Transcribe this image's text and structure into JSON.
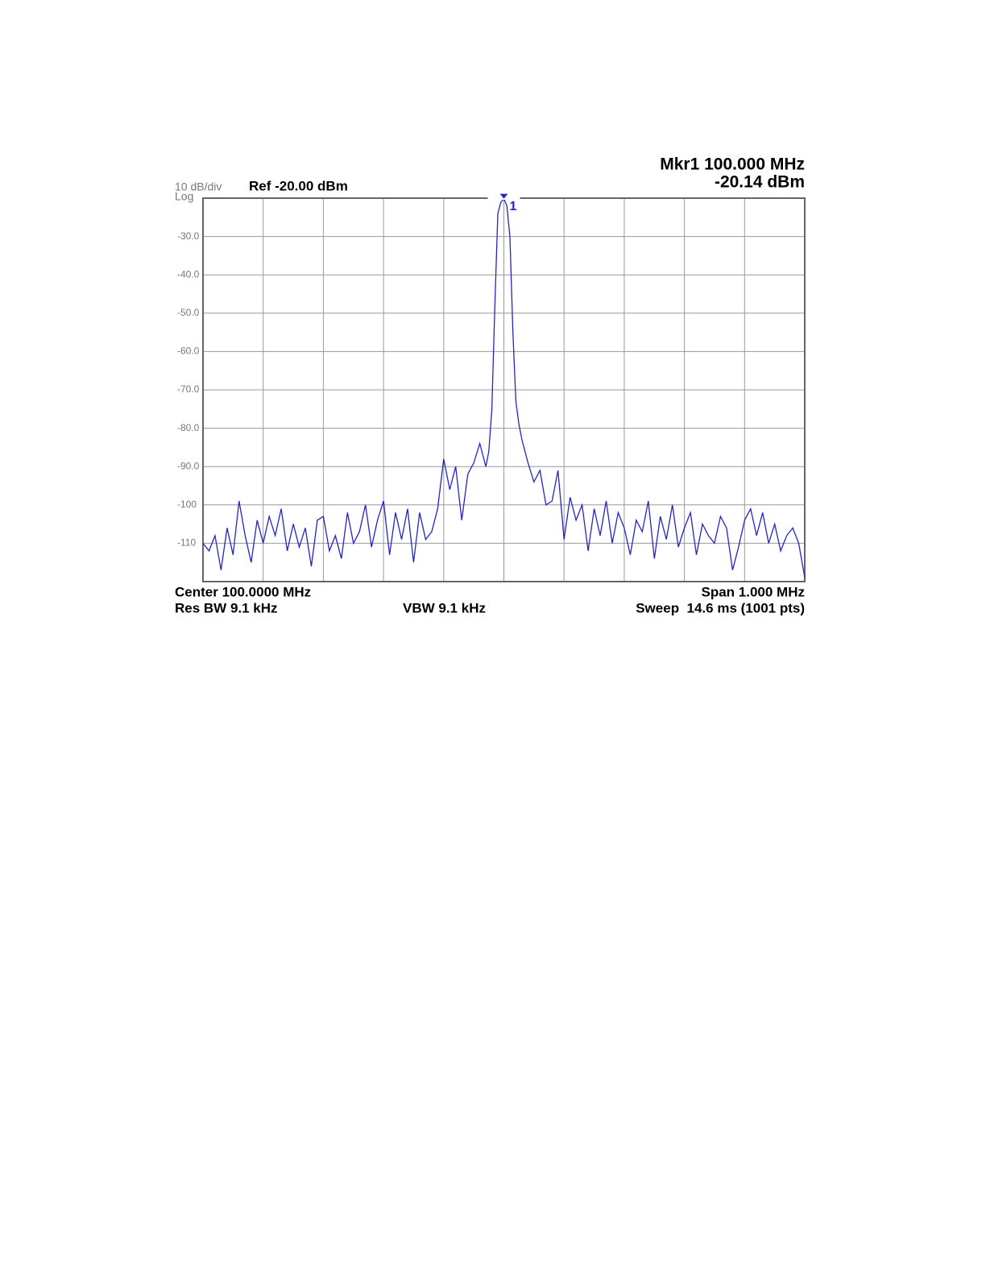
{
  "chart_data": {
    "type": "line",
    "scale_label": "10 dB/div",
    "scale_type": "Log",
    "reference": "Ref -20.00 dBm",
    "marker_readout": [
      "Mkr1 100.000 MHz",
      "-20.14 dBm"
    ],
    "marker": {
      "label": "1",
      "x": 100.0,
      "y": -20.14
    },
    "footer": {
      "center": "Center 100.0000 MHz",
      "span": "Span 1.000 MHz",
      "rbw": "Res BW 9.1 kHz",
      "vbw": "VBW 9.1 kHz",
      "sweep": "Sweep  14.6 ms (1001 pts)"
    },
    "xlim": [
      99.5,
      100.5
    ],
    "xticks": [
      99.6,
      99.7,
      99.8,
      99.9,
      100.0,
      100.1,
      100.2,
      100.3,
      100.4
    ],
    "ylim": [
      -120,
      -20
    ],
    "yticks": [
      {
        "value": -30,
        "label": "-30.0"
      },
      {
        "value": -40,
        "label": "-40.0"
      },
      {
        "value": -50,
        "label": "-50.0"
      },
      {
        "value": -60,
        "label": "-60.0"
      },
      {
        "value": -70,
        "label": "-70.0"
      },
      {
        "value": -80,
        "label": "-80.0"
      },
      {
        "value": -90,
        "label": "-90.0"
      },
      -100,
      -110
    ],
    "grid": true,
    "x": [
      99.5,
      99.51,
      99.52,
      99.53,
      99.54,
      99.55,
      99.56,
      99.57,
      99.58,
      99.59,
      99.6,
      99.61,
      99.62,
      99.63,
      99.64,
      99.65,
      99.66,
      99.67,
      99.68,
      99.69,
      99.7,
      99.71,
      99.72,
      99.73,
      99.74,
      99.75,
      99.76,
      99.77,
      99.78,
      99.79,
      99.8,
      99.81,
      99.82,
      99.83,
      99.84,
      99.85,
      99.86,
      99.87,
      99.88,
      99.89,
      99.9,
      99.91,
      99.92,
      99.93,
      99.94,
      99.95,
      99.96,
      99.97,
      99.975,
      99.98,
      99.985,
      99.99,
      99.995,
      100.0,
      100.005,
      100.01,
      100.015,
      100.02,
      100.025,
      100.03,
      100.04,
      100.05,
      100.06,
      100.07,
      100.08,
      100.09,
      100.1,
      100.11,
      100.12,
      100.13,
      100.14,
      100.15,
      100.16,
      100.17,
      100.18,
      100.19,
      100.2,
      100.21,
      100.22,
      100.23,
      100.24,
      100.25,
      100.26,
      100.27,
      100.28,
      100.29,
      100.3,
      100.31,
      100.32,
      100.33,
      100.34,
      100.35,
      100.36,
      100.37,
      100.38,
      100.39,
      100.4,
      100.41,
      100.42,
      100.43,
      100.44,
      100.45,
      100.46,
      100.47,
      100.48,
      100.49,
      100.5
    ],
    "series": [
      {
        "color": "#2424c8",
        "values": [
          -110,
          -112,
          -108,
          -117,
          -106,
          -113,
          -99,
          -108,
          -115,
          -104,
          -110,
          -103,
          -108,
          -101,
          -112,
          -105,
          -111,
          -106,
          -116,
          -104,
          -103,
          -112,
          -108,
          -114,
          -102,
          -110,
          -107,
          -100,
          -111,
          -104,
          -99,
          -113,
          -102,
          -109,
          -101,
          -115,
          -102,
          -109,
          -107,
          -101,
          -88,
          -96,
          -90,
          -104,
          -92,
          -89,
          -84,
          -90,
          -86,
          -75,
          -48,
          -24,
          -21,
          -20.14,
          -22,
          -30,
          -55,
          -73,
          -79,
          -83,
          -89,
          -94,
          -91,
          -100,
          -99,
          -91,
          -109,
          -98,
          -104,
          -100,
          -112,
          -101,
          -108,
          -99,
          -110,
          -102,
          -106,
          -113,
          -104,
          -107,
          -99,
          -114,
          -103,
          -109,
          -100,
          -111,
          -106,
          -102,
          -113,
          -105,
          -108,
          -110,
          -103,
          -106,
          -117,
          -111,
          -104,
          -101,
          -108,
          -102,
          -110,
          -105,
          -112,
          -108,
          -106,
          -110,
          -119
        ]
      }
    ]
  }
}
